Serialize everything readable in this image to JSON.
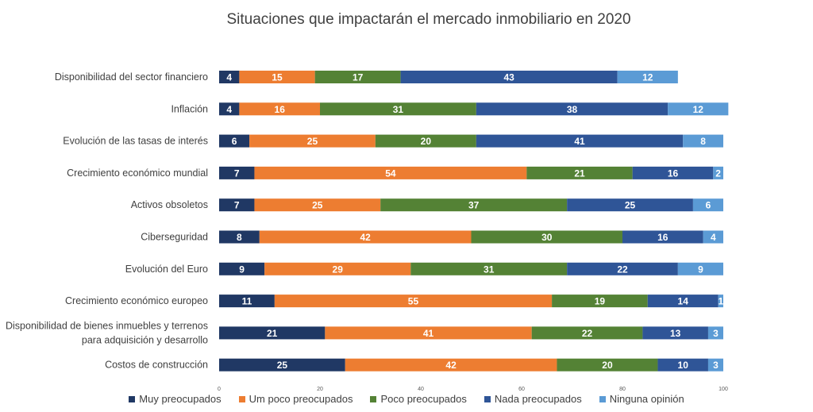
{
  "chart_data": {
    "type": "bar",
    "orientation": "horizontal",
    "stacked": true,
    "title": "Situaciones que impactarán el mercado inmobiliario en 2020",
    "xlabel": "",
    "ylabel": "",
    "xlim": [
      0,
      100
    ],
    "xticks": [
      0,
      20,
      40,
      60,
      80,
      100
    ],
    "legend_position": "bottom",
    "categories": [
      "Disponibilidad del sector financiero",
      "Inflación",
      "Evolución de las tasas de interés",
      "Crecimiento económico mundial",
      "Activos obsoletos",
      "Ciberseguridad",
      "Evolución del Euro",
      "Crecimiento económico europeo",
      [
        "Disponibilidad de bienes inmuebles y terrenos",
        "para adquisición y desarrollo"
      ],
      "Costos de construcción"
    ],
    "series": [
      {
        "name": "Muy preocupados",
        "color": "#203864",
        "values": [
          4,
          4,
          6,
          7,
          7,
          8,
          9,
          11,
          21,
          25
        ]
      },
      {
        "name": "Um poco preocupados",
        "color": "#ED7D31",
        "values": [
          15,
          16,
          25,
          54,
          25,
          42,
          29,
          55,
          41,
          42
        ]
      },
      {
        "name": "Poco preocupados",
        "color": "#548235",
        "values": [
          17,
          31,
          20,
          21,
          37,
          30,
          31,
          19,
          22,
          20
        ]
      },
      {
        "name": "Nada preocupados",
        "color": "#2F5597",
        "values": [
          43,
          38,
          41,
          16,
          25,
          16,
          22,
          14,
          13,
          10
        ]
      },
      {
        "name": "Ninguna opinión",
        "color": "#5B9BD5",
        "values": [
          12,
          12,
          8,
          2,
          6,
          4,
          9,
          1,
          3,
          3
        ]
      }
    ]
  }
}
